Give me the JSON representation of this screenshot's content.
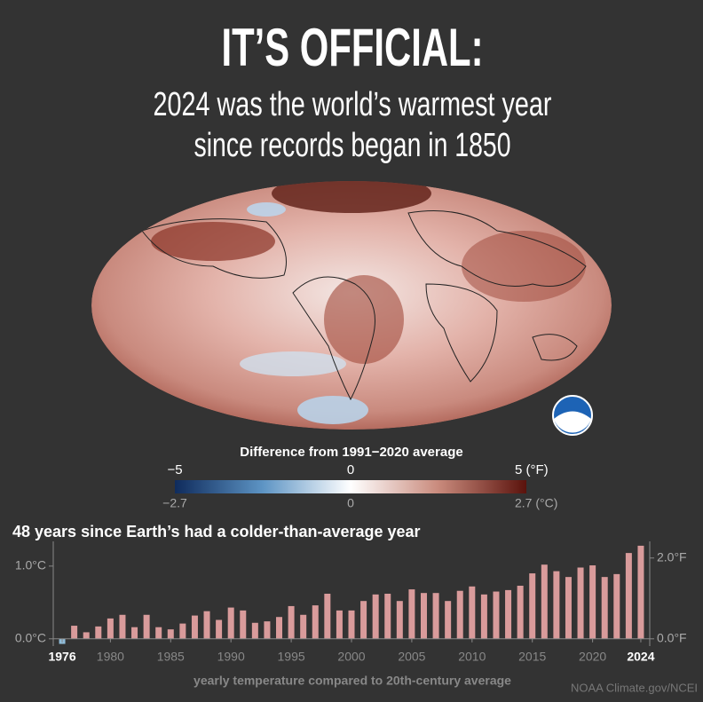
{
  "header": {
    "title": "IT’S OFFICIAL:",
    "subtitle_line1": "2024 was the world’s warmest year",
    "subtitle_line2": "since records began in 1850"
  },
  "map_legend": {
    "title": "Difference from 1991−2020 average",
    "f_labels": [
      "−5",
      "0",
      "5 (°F)"
    ],
    "c_labels": [
      "−2.7",
      "0",
      "2.7 (°C)"
    ]
  },
  "chart_data": {
    "type": "bar",
    "title": "48 years since Earth’s had a colder-than-average year",
    "x_label": "yearly temperature compared to 20th-century average",
    "x": [
      1976,
      1977,
      1978,
      1979,
      1980,
      1981,
      1982,
      1983,
      1984,
      1985,
      1986,
      1987,
      1988,
      1989,
      1990,
      1991,
      1992,
      1993,
      1994,
      1995,
      1996,
      1997,
      1998,
      1999,
      2000,
      2001,
      2002,
      2003,
      2004,
      2005,
      2006,
      2007,
      2008,
      2009,
      2010,
      2011,
      2012,
      2013,
      2014,
      2015,
      2016,
      2017,
      2018,
      2019,
      2020,
      2021,
      2022,
      2023,
      2024
    ],
    "values": [
      -0.07,
      0.18,
      0.09,
      0.17,
      0.28,
      0.33,
      0.16,
      0.33,
      0.16,
      0.13,
      0.21,
      0.32,
      0.38,
      0.26,
      0.43,
      0.39,
      0.22,
      0.24,
      0.3,
      0.45,
      0.33,
      0.46,
      0.62,
      0.39,
      0.39,
      0.52,
      0.61,
      0.62,
      0.52,
      0.68,
      0.63,
      0.63,
      0.52,
      0.66,
      0.72,
      0.61,
      0.65,
      0.67,
      0.73,
      0.9,
      1.02,
      0.93,
      0.85,
      0.98,
      1.01,
      0.85,
      0.89,
      1.18,
      1.28
    ],
    "color": "#d99b9b",
    "negative_color": "#8fbcd9",
    "xlim": [
      1975.26,
      2024.74
    ],
    "xticks": [
      1976,
      1980,
      1985,
      1990,
      1995,
      2000,
      2005,
      2010,
      2015,
      2020,
      2024
    ],
    "ylim": [
      -0.1,
      1.34
    ],
    "yticks": [
      {
        "value": 0,
        "label": "0.0°C"
      },
      {
        "value": 1,
        "label": "1.0°C"
      }
    ],
    "y2lim": [
      -0.18,
      2.412
    ],
    "y2ticks": [
      {
        "value": 0,
        "label": "0.0°F"
      },
      {
        "value": 2,
        "label": "2.0°F"
      }
    ],
    "source": "NOAA Climate.gov/NCEI"
  }
}
